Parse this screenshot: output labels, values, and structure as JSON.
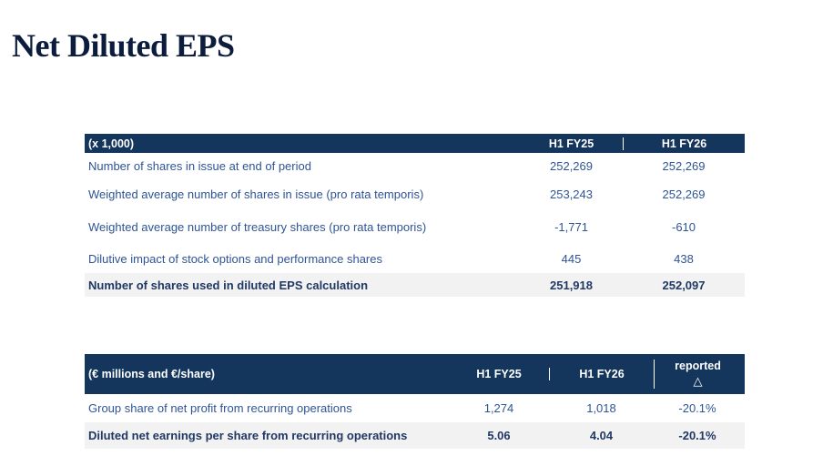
{
  "page": {
    "title": "Net Diluted EPS"
  },
  "colors": {
    "header_bg": "#14355C",
    "row_text": "#2E5496",
    "total_text": "#1F3864",
    "title_text": "#0C1C3C",
    "total_row_bg": "#F2F2F2",
    "divider": "#FFFFFF"
  },
  "shares_table": {
    "unit_label": "(x 1,000)",
    "columns": [
      "H1 FY25",
      "H1 FY26"
    ],
    "rows": [
      {
        "label": "Number of shares in issue at end of period",
        "values": [
          "252,269",
          "252,269"
        ]
      },
      {
        "label": "Weighted average number of shares in issue (pro rata temporis)",
        "values": [
          "253,243",
          "252,269"
        ]
      },
      {
        "label": "Weighted average number of treasury shares (pro rata temporis)",
        "values": [
          "-1,771",
          "-610"
        ]
      },
      {
        "label": "Dilutive impact of stock options and performance shares",
        "values": [
          "445",
          "438"
        ]
      },
      {
        "label": "Number of shares used in diluted EPS calculation",
        "values": [
          "251,918",
          "252,097"
        ],
        "total": true
      }
    ]
  },
  "eps_table": {
    "unit_label": "(€ millions and €/share)",
    "columns": [
      "H1 FY25",
      "H1 FY26"
    ],
    "delta_column": {
      "line1": "reported",
      "symbol": "△"
    },
    "rows": [
      {
        "label": "Group share of net profit from recurring operations",
        "values": [
          "1,274",
          "1,018",
          "-20.1%"
        ]
      },
      {
        "label": "Diluted net earnings per share from recurring operations",
        "values": [
          "5.06",
          "4.04",
          "-20.1%"
        ],
        "total": true
      }
    ]
  }
}
